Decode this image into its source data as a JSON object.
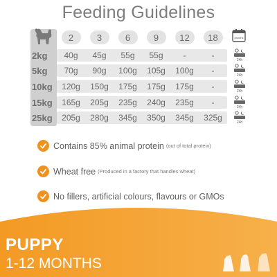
{
  "title": "Feeding Guidelines",
  "months": [
    "2",
    "3",
    "6",
    "9",
    "12",
    "18"
  ],
  "calendar": {
    "label": "Months"
  },
  "rows": [
    {
      "weight": "2kg",
      "values": [
        "40g",
        "45g",
        "55g",
        "55g",
        "-",
        "-"
      ],
      "per": "24h"
    },
    {
      "weight": "5kg",
      "values": [
        "70g",
        "90g",
        "100g",
        "105g",
        "100g",
        "-"
      ],
      "per": "24h"
    },
    {
      "weight": "10kg",
      "values": [
        "120g",
        "150g",
        "175g",
        "175g",
        "175g",
        "-"
      ],
      "per": "24h"
    },
    {
      "weight": "15kg",
      "values": [
        "165g",
        "205g",
        "235g",
        "240g",
        "235g",
        "-"
      ],
      "per": "24h"
    },
    {
      "weight": "25kg",
      "values": [
        "205g",
        "280g",
        "345g",
        "350g",
        "345g",
        "325g"
      ],
      "per": "24h"
    }
  ],
  "features": [
    {
      "main": "Contains 85% animal protein",
      "note": "(out of total protein)"
    },
    {
      "main": "Wheat free",
      "note": "(Produced in a factory that handles wheat)"
    },
    {
      "main": "No fillers, artificial colours, flavours or GMOs",
      "note": ""
    }
  ],
  "banner": {
    "title": "PUPPY",
    "subtitle": "1-12 MONTHS"
  },
  "colors": {
    "accent": "#f0921f",
    "table_fill": "#e8e8e8",
    "label_col": "#cfcfcf"
  }
}
